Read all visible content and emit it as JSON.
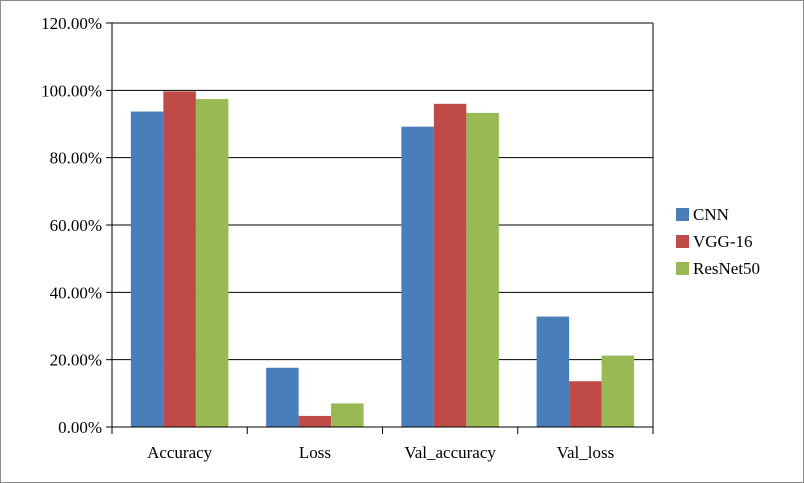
{
  "chart_data": {
    "type": "bar",
    "categories": [
      "Accuracy",
      "Loss",
      "Val_accuracy",
      "Val_loss"
    ],
    "series": [
      {
        "name": "CNN",
        "values": [
          93.7,
          17.6,
          89.2,
          32.8
        ]
      },
      {
        "name": "VGG-16",
        "values": [
          99.7,
          3.3,
          96.0,
          13.6
        ]
      },
      {
        "name": "ResNet50",
        "values": [
          97.4,
          7.0,
          93.3,
          21.2
        ]
      }
    ],
    "yticks": [
      "0.00%",
      "20.00%",
      "40.00%",
      "60.00%",
      "80.00%",
      "100.00%",
      "120.00%"
    ],
    "ylim": [
      0,
      120
    ],
    "grid": true,
    "legend": "right",
    "colors": {
      "CNN": "#4a7ebb",
      "VGG-16": "#be4b48",
      "ResNet50": "#98b954"
    }
  }
}
